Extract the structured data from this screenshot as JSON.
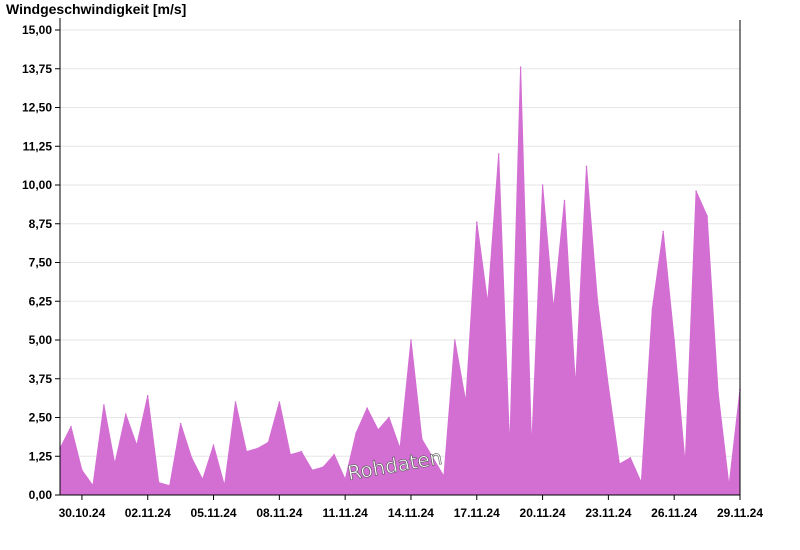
{
  "chart_data": {
    "type": "area",
    "ylabel": "Windgeschwindigkeit [m/s]",
    "watermark": "Rohdaten",
    "ylim": [
      0,
      15
    ],
    "yticks": [
      "0,00",
      "1,25",
      "2,50",
      "3,75",
      "5,00",
      "6,25",
      "7,50",
      "8,75",
      "10,00",
      "11,25",
      "12,50",
      "13,75",
      "15,00"
    ],
    "xlim_days": [
      "29.10.24",
      "29.11.24"
    ],
    "xticks": [
      "30.10.24",
      "02.11.24",
      "05.11.24",
      "08.11.24",
      "11.11.24",
      "14.11.24",
      "17.11.24",
      "20.11.24",
      "23.11.24",
      "26.11.24",
      "29.11.24"
    ],
    "series": [
      {
        "color": "#d36ed3",
        "x": [
          "29.10.24 00:00",
          "29.10.24 12:00",
          "30.10.24 00:00",
          "30.10.24 12:00",
          "31.10.24 00:00",
          "31.10.24 12:00",
          "01.11.24 00:00",
          "01.11.24 12:00",
          "02.11.24 00:00",
          "02.11.24 12:00",
          "03.11.24 00:00",
          "03.11.24 12:00",
          "04.11.24 00:00",
          "04.11.24 12:00",
          "05.11.24 00:00",
          "05.11.24 12:00",
          "06.11.24 00:00",
          "06.11.24 12:00",
          "07.11.24 00:00",
          "07.11.24 12:00",
          "08.11.24 00:00",
          "08.11.24 12:00",
          "09.11.24 00:00",
          "09.11.24 12:00",
          "10.11.24 00:00",
          "10.11.24 12:00",
          "11.11.24 00:00",
          "11.11.24 12:00",
          "12.11.24 00:00",
          "12.11.24 12:00",
          "13.11.24 00:00",
          "13.11.24 12:00",
          "14.11.24 00:00",
          "14.11.24 12:00",
          "15.11.24 00:00",
          "15.11.24 12:00",
          "16.11.24 00:00",
          "16.11.24 12:00",
          "17.11.24 00:00",
          "17.11.24 12:00",
          "18.11.24 00:00",
          "18.11.24 12:00",
          "19.11.24 00:00",
          "19.11.24 12:00",
          "20.11.24 00:00",
          "20.11.24 12:00",
          "21.11.24 00:00",
          "21.11.24 12:00",
          "22.11.24 00:00",
          "22.11.24 12:00",
          "23.11.24 00:00",
          "23.11.24 12:00",
          "24.11.24 00:00",
          "24.11.24 12:00",
          "25.11.24 00:00",
          "25.11.24 12:00",
          "26.11.24 00:00",
          "26.11.24 12:00",
          "27.11.24 00:00",
          "27.11.24 12:00",
          "28.11.24 00:00",
          "28.11.24 12:00",
          "29.11.24 00:00"
        ],
        "y": [
          1.5,
          2.2,
          0.8,
          0.3,
          2.9,
          1.0,
          2.6,
          1.6,
          3.2,
          0.4,
          0.3,
          2.3,
          1.2,
          0.5,
          1.6,
          0.3,
          3.0,
          1.4,
          1.5,
          1.7,
          3.0,
          1.3,
          1.4,
          0.8,
          0.9,
          1.3,
          0.5,
          2.0,
          2.8,
          2.1,
          2.5,
          1.5,
          5.0,
          1.8,
          1.2,
          0.6,
          5.0,
          3.0,
          8.8,
          6.2,
          11.0,
          1.5,
          13.8,
          1.5,
          10.0,
          6.0,
          9.5,
          3.5,
          10.6,
          6.3,
          3.5,
          1.0,
          1.2,
          0.4,
          6.0,
          8.5,
          5.0,
          1.0,
          9.8,
          9.0,
          3.3,
          0.3,
          3.4
        ]
      }
    ]
  }
}
